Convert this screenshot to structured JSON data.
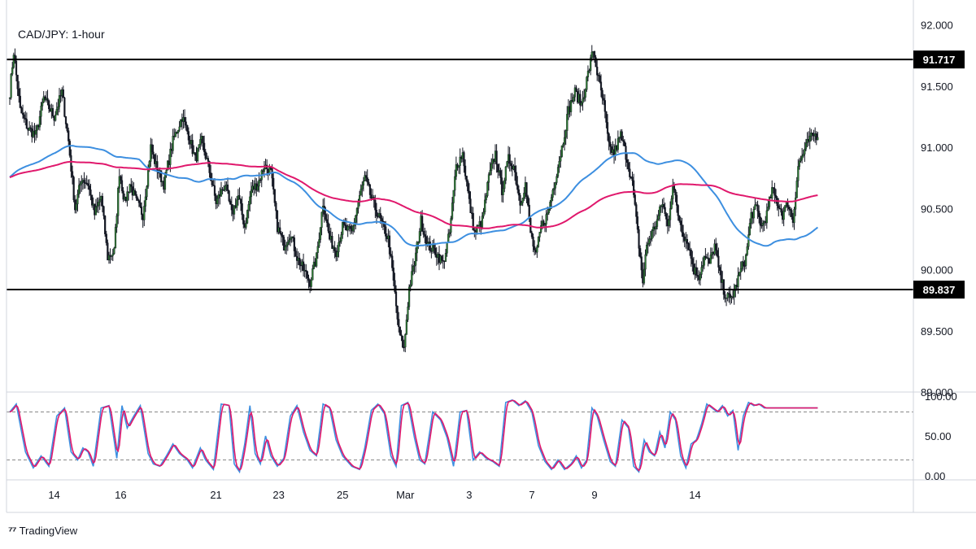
{
  "chart_data": {
    "type": "candlestick",
    "title": "CAD/JPY: 1-hour",
    "price_axis": {
      "ticks": [
        "92.000",
        "91.500",
        "91.000",
        "90.500",
        "90.000",
        "89.500",
        "89.000"
      ],
      "range": [
        89.0,
        92.15
      ]
    },
    "oscillator_axis": {
      "ticks": [
        "100.00",
        "50.00",
        "0.00"
      ],
      "range": [
        -5,
        105
      ],
      "dashed_levels": [
        80,
        20
      ]
    },
    "x_axis": {
      "ticks": [
        "14",
        "16",
        "21",
        "23",
        "25",
        "Mar",
        "3",
        "7",
        "9",
        "14"
      ]
    },
    "levels": [
      {
        "label": "91.717",
        "value": 91.717
      },
      {
        "label": "89.837",
        "value": 89.837
      }
    ],
    "ohlc_waypoints": [
      [
        0,
        91.45
      ],
      [
        3,
        91.78
      ],
      [
        8,
        91.3
      ],
      [
        14,
        91.15
      ],
      [
        20,
        91.1
      ],
      [
        26,
        91.4
      ],
      [
        34,
        91.25
      ],
      [
        40,
        91.45
      ],
      [
        45,
        91.05
      ],
      [
        50,
        90.5
      ],
      [
        55,
        90.75
      ],
      [
        60,
        90.7
      ],
      [
        65,
        90.45
      ],
      [
        70,
        90.6
      ],
      [
        75,
        90.1
      ],
      [
        80,
        90.15
      ],
      [
        84,
        90.8
      ],
      [
        88,
        90.55
      ],
      [
        92,
        90.7
      ],
      [
        97,
        90.55
      ],
      [
        102,
        90.45
      ],
      [
        108,
        91.0
      ],
      [
        112,
        90.85
      ],
      [
        118,
        90.7
      ],
      [
        125,
        91.05
      ],
      [
        132,
        91.25
      ],
      [
        137,
        91.1
      ],
      [
        142,
        90.9
      ],
      [
        147,
        91.05
      ],
      [
        152,
        90.85
      ],
      [
        158,
        90.55
      ],
      [
        165,
        90.7
      ],
      [
        170,
        90.45
      ],
      [
        175,
        90.6
      ],
      [
        180,
        90.35
      ],
      [
        185,
        90.65
      ],
      [
        190,
        90.7
      ],
      [
        195,
        90.85
      ],
      [
        200,
        90.8
      ],
      [
        205,
        90.35
      ],
      [
        210,
        90.2
      ],
      [
        215,
        90.3
      ],
      [
        220,
        90.1
      ],
      [
        225,
        90.0
      ],
      [
        230,
        89.9
      ],
      [
        235,
        90.1
      ],
      [
        240,
        90.55
      ],
      [
        245,
        90.25
      ],
      [
        250,
        90.15
      ],
      [
        255,
        90.35
      ],
      [
        262,
        90.3
      ],
      [
        268,
        90.6
      ],
      [
        272,
        90.75
      ],
      [
        278,
        90.55
      ],
      [
        282,
        90.45
      ],
      [
        286,
        90.35
      ],
      [
        290,
        90.25
      ],
      [
        294,
        89.9
      ],
      [
        298,
        89.5
      ],
      [
        302,
        89.35
      ],
      [
        306,
        89.85
      ],
      [
        310,
        90.05
      ],
      [
        315,
        90.4
      ],
      [
        320,
        90.2
      ],
      [
        326,
        90.15
      ],
      [
        332,
        90.05
      ],
      [
        337,
        90.3
      ],
      [
        342,
        90.85
      ],
      [
        347,
        90.95
      ],
      [
        352,
        90.55
      ],
      [
        356,
        90.3
      ],
      [
        362,
        90.4
      ],
      [
        367,
        90.75
      ],
      [
        372,
        90.95
      ],
      [
        377,
        90.65
      ],
      [
        382,
        90.9
      ],
      [
        386,
        90.85
      ],
      [
        391,
        90.55
      ],
      [
        395,
        90.7
      ],
      [
        399,
        90.3
      ],
      [
        403,
        90.1
      ],
      [
        407,
        90.35
      ],
      [
        412,
        90.45
      ],
      [
        418,
        90.75
      ],
      [
        423,
        91.0
      ],
      [
        428,
        91.3
      ],
      [
        433,
        91.45
      ],
      [
        438,
        91.35
      ],
      [
        443,
        91.6
      ],
      [
        447,
        91.8
      ],
      [
        451,
        91.55
      ],
      [
        455,
        91.35
      ],
      [
        459,
        91.0
      ],
      [
        463,
        90.95
      ],
      [
        468,
        91.1
      ],
      [
        473,
        90.9
      ],
      [
        477,
        90.7
      ],
      [
        481,
        90.3
      ],
      [
        485,
        89.9
      ],
      [
        488,
        90.2
      ],
      [
        492,
        90.3
      ],
      [
        496,
        90.4
      ],
      [
        500,
        90.55
      ],
      [
        504,
        90.35
      ],
      [
        508,
        90.7
      ],
      [
        512,
        90.45
      ],
      [
        516,
        90.3
      ],
      [
        520,
        90.2
      ],
      [
        524,
        90.0
      ],
      [
        528,
        89.95
      ],
      [
        532,
        90.1
      ],
      [
        536,
        90.05
      ],
      [
        540,
        90.2
      ],
      [
        544,
        89.95
      ],
      [
        548,
        89.8
      ],
      [
        552,
        89.75
      ],
      [
        556,
        89.85
      ],
      [
        560,
        90.0
      ],
      [
        564,
        90.1
      ],
      [
        568,
        90.45
      ],
      [
        572,
        90.5
      ],
      [
        576,
        90.35
      ],
      [
        580,
        90.45
      ],
      [
        584,
        90.65
      ],
      [
        588,
        90.55
      ],
      [
        592,
        90.45
      ],
      [
        596,
        90.55
      ],
      [
        600,
        90.4
      ],
      [
        604,
        90.85
      ],
      [
        608,
        90.95
      ],
      [
        612,
        91.05
      ],
      [
        616,
        91.1
      ]
    ],
    "oscillator_waypoints": [
      [
        0,
        80
      ],
      [
        5,
        90
      ],
      [
        12,
        30
      ],
      [
        18,
        10
      ],
      [
        24,
        25
      ],
      [
        30,
        12
      ],
      [
        36,
        75
      ],
      [
        42,
        85
      ],
      [
        47,
        30
      ],
      [
        52,
        20
      ],
      [
        56,
        35
      ],
      [
        60,
        30
      ],
      [
        64,
        12
      ],
      [
        70,
        85
      ],
      [
        76,
        88
      ],
      [
        82,
        22
      ],
      [
        86,
        88
      ],
      [
        90,
        60
      ],
      [
        95,
        75
      ],
      [
        100,
        88
      ],
      [
        106,
        28
      ],
      [
        110,
        15
      ],
      [
        115,
        12
      ],
      [
        120,
        25
      ],
      [
        125,
        40
      ],
      [
        130,
        28
      ],
      [
        136,
        20
      ],
      [
        140,
        10
      ],
      [
        146,
        35
      ],
      [
        150,
        20
      ],
      [
        156,
        8
      ],
      [
        162,
        90
      ],
      [
        168,
        88
      ],
      [
        172,
        15
      ],
      [
        176,
        5
      ],
      [
        180,
        40
      ],
      [
        184,
        88
      ],
      [
        188,
        28
      ],
      [
        192,
        15
      ],
      [
        196,
        50
      ],
      [
        200,
        25
      ],
      [
        205,
        12
      ],
      [
        210,
        22
      ],
      [
        215,
        75
      ],
      [
        220,
        88
      ],
      [
        225,
        55
      ],
      [
        230,
        32
      ],
      [
        235,
        25
      ],
      [
        240,
        90
      ],
      [
        245,
        85
      ],
      [
        250,
        45
      ],
      [
        255,
        25
      ],
      [
        262,
        12
      ],
      [
        268,
        8
      ],
      [
        272,
        35
      ],
      [
        277,
        82
      ],
      [
        282,
        90
      ],
      [
        287,
        78
      ],
      [
        292,
        25
      ],
      [
        296,
        12
      ],
      [
        300,
        88
      ],
      [
        305,
        92
      ],
      [
        310,
        48
      ],
      [
        314,
        20
      ],
      [
        318,
        15
      ],
      [
        324,
        80
      ],
      [
        330,
        70
      ],
      [
        335,
        48
      ],
      [
        340,
        12
      ],
      [
        345,
        80
      ],
      [
        350,
        82
      ],
      [
        355,
        20
      ],
      [
        360,
        30
      ],
      [
        365,
        22
      ],
      [
        370,
        18
      ],
      [
        375,
        12
      ],
      [
        380,
        92
      ],
      [
        385,
        95
      ],
      [
        390,
        88
      ],
      [
        395,
        94
      ],
      [
        400,
        80
      ],
      [
        405,
        38
      ],
      [
        410,
        18
      ],
      [
        415,
        8
      ],
      [
        420,
        20
      ],
      [
        425,
        8
      ],
      [
        430,
        15
      ],
      [
        434,
        25
      ],
      [
        438,
        10
      ],
      [
        442,
        20
      ],
      [
        446,
        85
      ],
      [
        450,
        75
      ],
      [
        455,
        45
      ],
      [
        460,
        18
      ],
      [
        464,
        12
      ],
      [
        469,
        70
      ],
      [
        474,
        60
      ],
      [
        478,
        12
      ],
      [
        482,
        5
      ],
      [
        486,
        45
      ],
      [
        490,
        30
      ],
      [
        494,
        25
      ],
      [
        498,
        55
      ],
      [
        502,
        35
      ],
      [
        506,
        80
      ],
      [
        510,
        70
      ],
      [
        514,
        25
      ],
      [
        518,
        10
      ],
      [
        522,
        40
      ],
      [
        526,
        45
      ],
      [
        530,
        65
      ],
      [
        534,
        90
      ],
      [
        538,
        85
      ],
      [
        542,
        80
      ],
      [
        546,
        88
      ],
      [
        550,
        75
      ],
      [
        554,
        82
      ],
      [
        558,
        32
      ],
      [
        562,
        75
      ],
      [
        566,
        92
      ],
      [
        570,
        88
      ],
      [
        574,
        90
      ],
      [
        578,
        85
      ]
    ]
  },
  "brand": {
    "name": "TradingView"
  }
}
